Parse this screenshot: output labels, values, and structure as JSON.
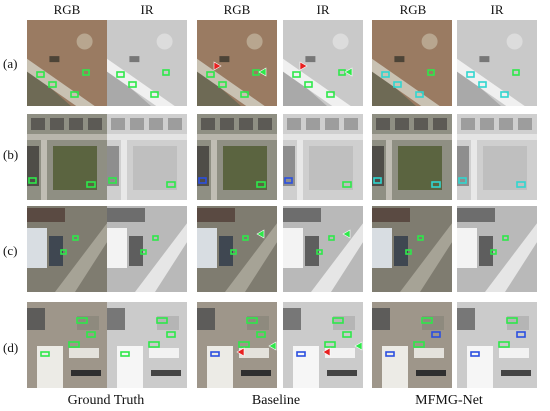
{
  "column_headers": [
    "RGB",
    "IR",
    "RGB",
    "IR",
    "RGB",
    "IR"
  ],
  "row_labels": [
    "(a)",
    "(b)",
    "(c)",
    "(d)"
  ],
  "group_labels": [
    "Ground Truth",
    "Baseline",
    "MFMG-Net"
  ],
  "colors": {
    "detection_green": "#2ee84a",
    "detection_cyan": "#2fd6d0",
    "missed_red": "#e82020",
    "missed_blue": "#2b4fe0"
  },
  "markers": {
    "baseline_red_arrows": [
      {
        "row": 0,
        "modality": "RGB"
      },
      {
        "row": 0,
        "modality": "IR"
      },
      {
        "row": 3,
        "modality": "RGB"
      },
      {
        "row": 3,
        "modality": "IR"
      }
    ],
    "baseline_green_arrows": [
      {
        "row": 0,
        "modality": "RGB"
      },
      {
        "row": 0,
        "modality": "IR"
      },
      {
        "row": 2,
        "modality": "RGB"
      },
      {
        "row": 2,
        "modality": "IR"
      },
      {
        "row": 3,
        "modality": "RGB"
      },
      {
        "row": 3,
        "modality": "IR"
      }
    ]
  }
}
